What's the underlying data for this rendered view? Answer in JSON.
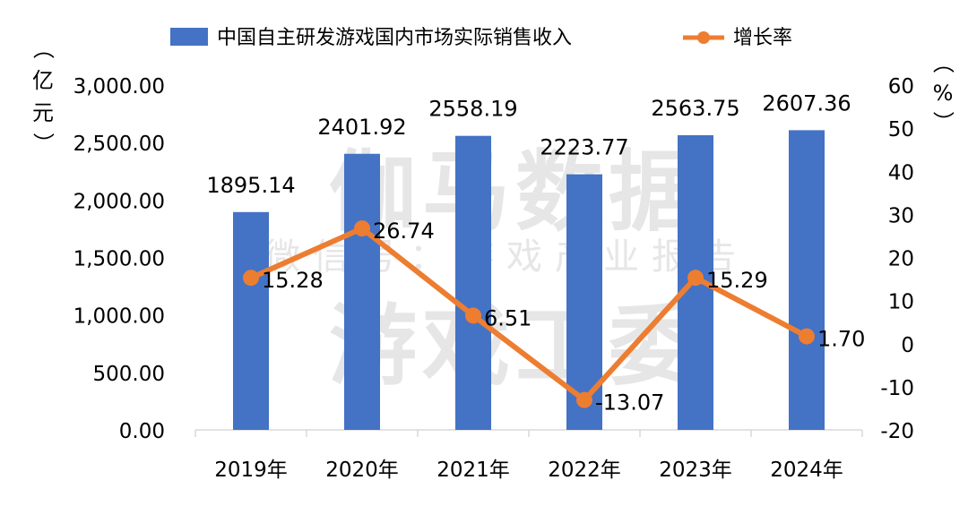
{
  "watermark": {
    "line1": "伽马数据",
    "line2": "微信号：游戏产业报告",
    "line3": "游戏工委"
  },
  "colors": {
    "bar": "#4472C4",
    "line": "#ED7D31",
    "text": "#000000",
    "axis": "#D9D9D9",
    "watermark": "#E6E6E6"
  },
  "chart_data": {
    "type": "bar",
    "categories": [
      "2019年",
      "2020年",
      "2021年",
      "2022年",
      "2023年",
      "2024年"
    ],
    "series": [
      {
        "name": "中国自主研发游戏国内市场实际销售收入",
        "type": "bar",
        "axis": "left",
        "values": [
          1895.14,
          2401.92,
          2558.19,
          2223.77,
          2563.75,
          2607.36
        ],
        "labels": [
          "1895.14",
          "2401.92",
          "2558.19",
          "2223.77",
          "2563.75",
          "2607.36"
        ]
      },
      {
        "name": "增长率",
        "type": "line",
        "axis": "right",
        "values": [
          15.28,
          26.74,
          6.51,
          -13.07,
          15.29,
          1.7
        ],
        "labels": [
          "15.28",
          "26.74",
          "6.51",
          "-13.07",
          "15.29",
          "1.70"
        ]
      }
    ],
    "y_left": {
      "label": "亿元",
      "label_chars": [
        "（",
        "亿",
        "元",
        "）"
      ],
      "min": 0,
      "max": 3000,
      "ticks": [
        0,
        500,
        1000,
        1500,
        2000,
        2500,
        3000
      ],
      "tick_labels": [
        "0.00",
        "500.00",
        "1,000.00",
        "1,500.00",
        "2,000.00",
        "2,500.00",
        "3,000.00"
      ]
    },
    "y_right": {
      "label": "%",
      "label_chars": [
        "（",
        "%",
        "）"
      ],
      "min": -20,
      "max": 60,
      "ticks": [
        -20,
        -10,
        0,
        10,
        20,
        30,
        40,
        50,
        60
      ],
      "tick_labels": [
        "-20",
        "-10",
        "0",
        "10",
        "20",
        "30",
        "40",
        "50",
        "60"
      ]
    },
    "legend_position": "top-center",
    "grid": false
  }
}
